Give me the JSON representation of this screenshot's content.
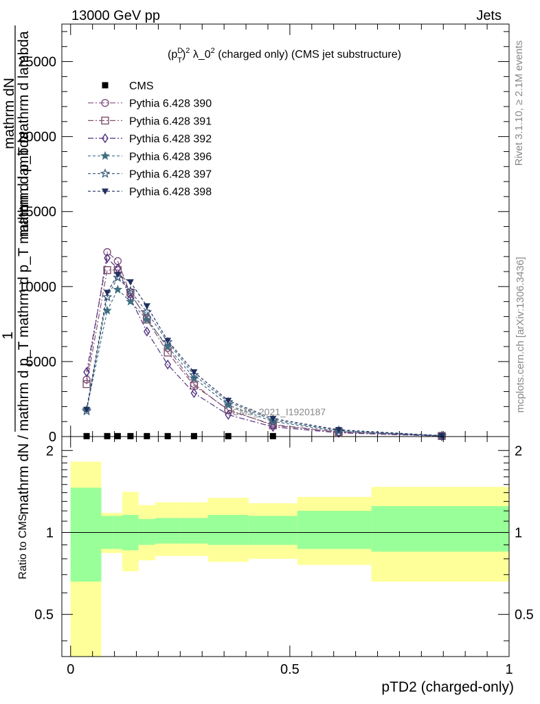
{
  "header": {
    "energy_label": "13000 GeV pp",
    "category_label": "Jets"
  },
  "side_labels": {
    "rivet": "Rivet 3.1.10, ≥ 2.1M events",
    "mcplots": "mcplots.cern.ch [arXiv:1306.3436]"
  },
  "watermark": "CMS_2021_I1920187",
  "chart_data": [
    {
      "type": "line",
      "title": "(p_T^D)^2 λ_0^2 (charged only) (CMS jet substructure)",
      "title_parts": {
        "base": "(p",
        "sup1": "D",
        "sub1": "T",
        "close": ")",
        "sup2": "2",
        "rest": " λ_0",
        "sup3": "2",
        "tail": " (charged only) (CMS jet substructure)"
      },
      "ylabel_num_prefix": "1",
      "ylabel_num": "mathrm dN",
      "ylabel_num_full": "mathrm d^{2}N",
      "ylabel_den": "mathrm dN / mathrm d p_T mathrm d p_T mathrm d lambda",
      "ylabel_den_parts": [
        "mathrm dN / mathrm d p",
        "T",
        " mathrm d p",
        "T",
        " mathrm d lambda"
      ],
      "ylabel_top_parts": [
        "mathrm d",
        "2",
        "N"
      ],
      "ylim": [
        0,
        27500
      ],
      "yticks": [
        0,
        5000,
        10000,
        15000,
        20000,
        25000
      ],
      "ytick_labels": [
        "0",
        "5000",
        "10000",
        "15000",
        "20000",
        "25000"
      ],
      "xlim": [
        -0.02,
        1.0
      ],
      "legend_position": "top-left",
      "x": [
        0.0365,
        0.0835,
        0.1075,
        0.1365,
        0.174,
        0.2215,
        0.2815,
        0.3595,
        0.4615,
        0.6115,
        0.8465
      ],
      "series": [
        {
          "name": "CMS",
          "color": "#000000",
          "marker": "square-filled",
          "dash": "none",
          "values": [
            30,
            30,
            30,
            30,
            30,
            30,
            30,
            30,
            30,
            0,
            0
          ]
        },
        {
          "name": "Pythia 6.428 390",
          "color": "#7f4f7f",
          "marker": "circle-open",
          "dash": "8,3,2,3",
          "values": [
            3800,
            12300,
            11700,
            9500,
            7900,
            5900,
            3500,
            1750,
            800,
            300,
            40
          ]
        },
        {
          "name": "Pythia 6.428 391",
          "color": "#7f4f6a",
          "marker": "square-open",
          "dash": "8,3,2,3",
          "values": [
            3500,
            11100,
            11100,
            9600,
            7800,
            5600,
            3400,
            1800,
            750,
            300,
            40
          ]
        },
        {
          "name": "Pythia 6.428 392",
          "color": "#4f2f7f",
          "marker": "diamond-open",
          "dash": "8,3,2,3",
          "values": [
            4300,
            11900,
            11200,
            9200,
            7000,
            4800,
            2900,
            1450,
            650,
            250,
            30
          ]
        },
        {
          "name": "Pythia 6.428 396",
          "color": "#3f6f7f",
          "marker": "star-filled",
          "dash": "4,3",
          "values": [
            1800,
            8400,
            9800,
            9000,
            7800,
            6000,
            3900,
            2100,
            1000,
            350,
            50
          ]
        },
        {
          "name": "Pythia 6.428 397",
          "color": "#3f5f7f",
          "marker": "star-open",
          "dash": "4,3",
          "values": [
            1700,
            9300,
            10600,
            9700,
            8300,
            6300,
            4100,
            2300,
            1100,
            400,
            50
          ]
        },
        {
          "name": "Pythia 6.428 398",
          "color": "#1f2f5f",
          "marker": "triangle-down-filled",
          "dash": "4,3",
          "values": [
            1800,
            9600,
            10800,
            10300,
            8700,
            6400,
            4300,
            2400,
            1200,
            450,
            60
          ]
        }
      ]
    },
    {
      "type": "area",
      "ylabel": "Ratio to CMS",
      "xlabel": "pTD2 (charged-only)",
      "xlim": [
        -0.02,
        1.0
      ],
      "ylim": [
        0.35,
        2.25
      ],
      "yticks": [
        0.5,
        1,
        2
      ],
      "ytick_labels": [
        "0.5",
        "1",
        "2"
      ],
      "xticks": [
        0,
        0.5,
        1
      ],
      "xtick_labels": [
        "0",
        "0.5",
        "1"
      ],
      "bins": [
        {
          "lo": 0.0,
          "hi": 0.07,
          "outer": [
            0.35,
            1.82
          ],
          "inner": [
            0.66,
            1.46
          ]
        },
        {
          "lo": 0.07,
          "hi": 0.097,
          "outer": [
            0.84,
            1.18
          ],
          "inner": [
            0.87,
            1.15
          ]
        },
        {
          "lo": 0.097,
          "hi": 0.118,
          "outer": [
            0.84,
            1.18
          ],
          "inner": [
            0.87,
            1.15
          ]
        },
        {
          "lo": 0.118,
          "hi": 0.155,
          "outer": [
            0.72,
            1.41
          ],
          "inner": [
            0.86,
            1.16
          ]
        },
        {
          "lo": 0.155,
          "hi": 0.193,
          "outer": [
            0.79,
            1.26
          ],
          "inner": [
            0.9,
            1.12
          ]
        },
        {
          "lo": 0.193,
          "hi": 0.25,
          "outer": [
            0.82,
            1.29
          ],
          "inner": [
            0.91,
            1.13
          ]
        },
        {
          "lo": 0.25,
          "hi": 0.313,
          "outer": [
            0.82,
            1.29
          ],
          "inner": [
            0.91,
            1.13
          ]
        },
        {
          "lo": 0.313,
          "hi": 0.406,
          "outer": [
            0.78,
            1.34
          ],
          "inner": [
            0.9,
            1.16
          ]
        },
        {
          "lo": 0.406,
          "hi": 0.517,
          "outer": [
            0.8,
            1.28
          ],
          "inner": [
            0.9,
            1.15
          ]
        },
        {
          "lo": 0.517,
          "hi": 0.686,
          "outer": [
            0.76,
            1.35
          ],
          "inner": [
            0.87,
            1.2
          ]
        },
        {
          "lo": 0.686,
          "hi": 1.0,
          "outer": [
            0.66,
            1.47
          ],
          "inner": [
            0.85,
            1.25
          ]
        }
      ],
      "band_colors": {
        "outer": "#ffff99",
        "inner": "#99ff99"
      },
      "reference_line": 1
    }
  ]
}
